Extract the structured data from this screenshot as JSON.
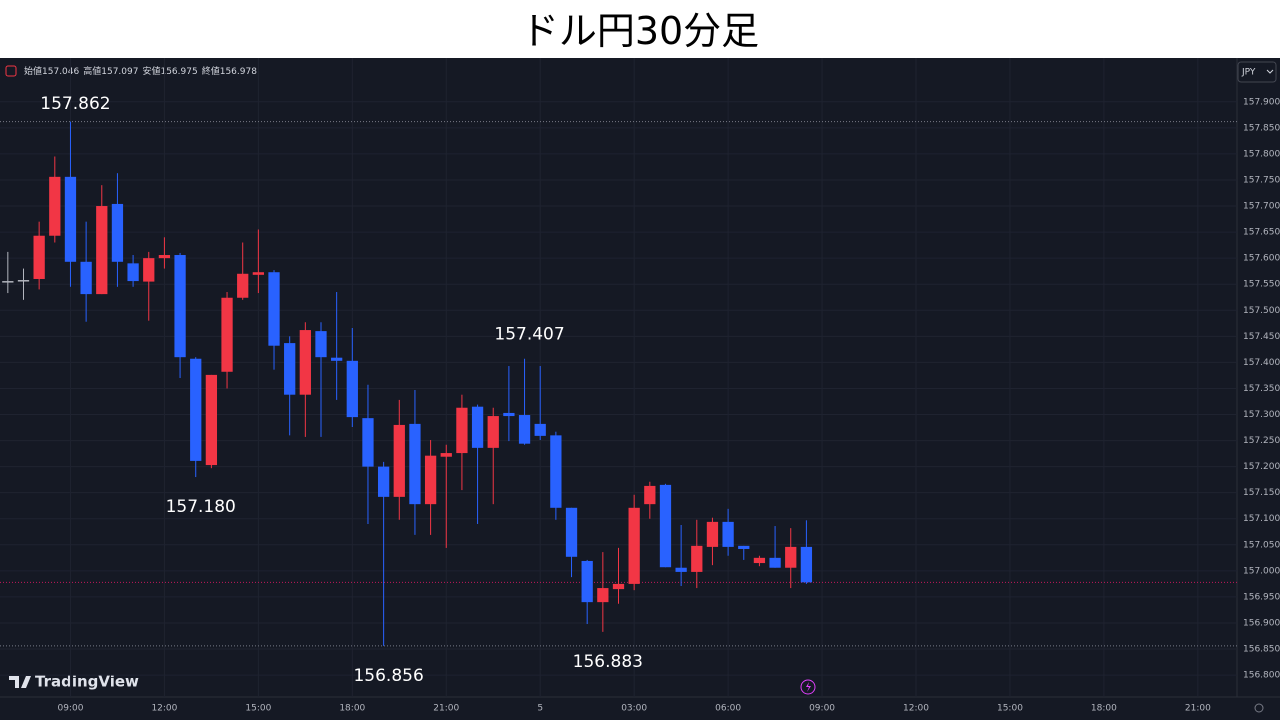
{
  "chart_data": {
    "type": "candlestick",
    "title": "ドル円30分足",
    "currency": "JPY",
    "watermark": "TradingView",
    "ohlc_labels": [
      "始値",
      "高値",
      "安値",
      "終値"
    ],
    "categories": [
      null,
      null,
      null,
      null,
      "09:00",
      null,
      null,
      null,
      null,
      null,
      "12:00",
      null,
      null,
      null,
      null,
      null,
      "15:00",
      null,
      null,
      null,
      null,
      null,
      "18:00",
      null,
      null,
      null,
      null,
      null,
      "21:00",
      null,
      null,
      null,
      null,
      null,
      "5",
      null,
      null,
      null,
      null,
      null,
      "03:00",
      null,
      null,
      null,
      null,
      null,
      "06:00",
      null,
      null,
      null,
      null,
      null,
      "09:00",
      null,
      null,
      null,
      null,
      null,
      "12:00",
      null,
      null,
      null,
      null,
      null,
      "15:00",
      null,
      null,
      null,
      null,
      null,
      "18:00",
      null,
      null,
      null,
      null,
      null,
      "21:00",
      null,
      null
    ],
    "open": [
      157.556,
      157.558,
      157.56,
      157.643,
      157.756,
      157.593,
      157.531,
      157.704,
      157.59,
      157.555,
      157.6,
      157.606,
      157.407,
      157.203,
      157.382,
      157.524,
      157.568,
      157.573,
      157.437,
      157.338,
      157.46,
      157.409,
      157.403,
      157.293,
      157.2,
      157.142,
      157.282,
      157.128,
      157.219,
      157.226,
      157.315,
      157.236,
      157.303,
      157.299,
      157.282,
      157.26,
      157.121,
      157.019,
      156.94,
      156.965,
      156.975,
      157.128,
      157.165,
      157.006,
      156.998,
      157.046,
      157.094,
      157.048,
      157.015,
      157.025,
      157.006,
      157.046,
      null,
      null,
      null,
      null,
      null,
      null,
      null,
      null,
      null,
      null,
      null,
      null,
      null,
      null,
      null,
      null,
      null,
      null,
      null,
      null,
      null,
      null,
      null,
      null,
      null,
      null,
      null
    ],
    "high": [
      157.612,
      157.58,
      157.67,
      157.795,
      157.862,
      157.67,
      157.74,
      157.763,
      157.606,
      157.612,
      157.64,
      157.61,
      157.41,
      157.376,
      157.535,
      157.63,
      157.655,
      157.577,
      157.45,
      157.477,
      157.477,
      157.535,
      157.466,
      157.357,
      157.209,
      157.328,
      157.347,
      157.251,
      157.242,
      157.338,
      157.319,
      157.313,
      157.393,
      157.407,
      157.393,
      157.267,
      157.121,
      157.021,
      157.036,
      157.044,
      157.146,
      157.171,
      157.167,
      157.088,
      157.098,
      157.102,
      157.119,
      157.048,
      157.029,
      157.086,
      157.082,
      157.097,
      null,
      null,
      null,
      null,
      null,
      null,
      null,
      null,
      null,
      null,
      null,
      null,
      null,
      null,
      null,
      null,
      null,
      null,
      null,
      null,
      null,
      null,
      null,
      null,
      null,
      null,
      null
    ],
    "low": [
      157.533,
      157.52,
      157.54,
      157.63,
      157.545,
      157.478,
      157.531,
      157.545,
      157.545,
      157.48,
      157.58,
      157.37,
      157.18,
      157.197,
      157.35,
      157.52,
      157.533,
      157.386,
      157.26,
      157.257,
      157.257,
      157.328,
      157.276,
      157.09,
      156.856,
      157.098,
      157.069,
      157.069,
      157.044,
      157.155,
      157.09,
      157.128,
      157.249,
      157.242,
      157.251,
      157.098,
      156.988,
      156.898,
      156.883,
      156.937,
      156.963,
      157.1,
      157.007,
      156.971,
      156.967,
      157.011,
      157.029,
      157.021,
      157.009,
      157.006,
      156.967,
      156.975,
      null,
      null,
      null,
      null,
      null,
      null,
      null,
      null,
      null,
      null,
      null,
      null,
      null,
      null,
      null,
      null,
      null,
      null,
      null,
      null,
      null,
      null,
      null,
      null,
      null,
      null,
      null
    ],
    "close": [
      157.556,
      157.558,
      157.643,
      157.756,
      157.593,
      157.531,
      157.7,
      157.593,
      157.556,
      157.6,
      157.606,
      157.41,
      157.211,
      157.376,
      157.524,
      157.57,
      157.573,
      157.432,
      157.338,
      157.462,
      157.41,
      157.403,
      157.295,
      157.2,
      157.142,
      157.28,
      157.128,
      157.221,
      157.226,
      157.313,
      157.236,
      157.297,
      157.297,
      157.244,
      157.259,
      157.121,
      157.027,
      156.94,
      156.967,
      156.975,
      157.121,
      157.163,
      157.007,
      156.998,
      157.048,
      157.094,
      157.046,
      157.042,
      157.025,
      157.006,
      157.046,
      156.978,
      null,
      null,
      null,
      null,
      null,
      null,
      null,
      null,
      null,
      null,
      null,
      null,
      null,
      null,
      null,
      null,
      null,
      null,
      null,
      null,
      null,
      null,
      null,
      null,
      null,
      null,
      null
    ],
    "up_color": "#f23645",
    "down_color": "#2962ff",
    "flat_color": "#b2b5be",
    "last_line_color": "#c2185b",
    "annotations": [
      {
        "value": 157.862,
        "label": "157.862"
      },
      {
        "value": 157.18,
        "label": "157.180"
      },
      {
        "value": 157.407,
        "label": "157.407"
      },
      {
        "value": 156.856,
        "label": "156.856"
      },
      {
        "value": 156.883,
        "label": "156.883"
      }
    ],
    "ylim": [
      156.758,
      157.984
    ],
    "yticks": [
      {
        "value": 157.9,
        "label": "157.900"
      },
      {
        "value": 157.85,
        "label": "157.850"
      },
      {
        "value": 157.8,
        "label": "157.800"
      },
      {
        "value": 157.75,
        "label": "157.750"
      },
      {
        "value": 157.7,
        "label": "157.700"
      },
      {
        "value": 157.65,
        "label": "157.650"
      },
      {
        "value": 157.6,
        "label": "157.600"
      },
      {
        "value": 157.55,
        "label": "157.550"
      },
      {
        "value": 157.5,
        "label": "157.500"
      },
      {
        "value": 157.45,
        "label": "157.450"
      },
      {
        "value": 157.4,
        "label": "157.400"
      },
      {
        "value": 157.35,
        "label": "157.350"
      },
      {
        "value": 157.3,
        "label": "157.300"
      },
      {
        "value": 157.25,
        "label": "157.250"
      },
      {
        "value": 157.2,
        "label": "157.200"
      },
      {
        "value": 157.15,
        "label": "157.150"
      },
      {
        "value": 157.1,
        "label": "157.100"
      },
      {
        "value": 157.05,
        "label": "157.050"
      },
      {
        "value": 157.0,
        "label": "157.000"
      },
      {
        "value": 156.95,
        "label": "156.950"
      },
      {
        "value": 156.9,
        "label": "156.900"
      },
      {
        "value": 156.85,
        "label": "156.850"
      },
      {
        "value": 156.8,
        "label": "156.800"
      }
    ],
    "grid": true
  }
}
